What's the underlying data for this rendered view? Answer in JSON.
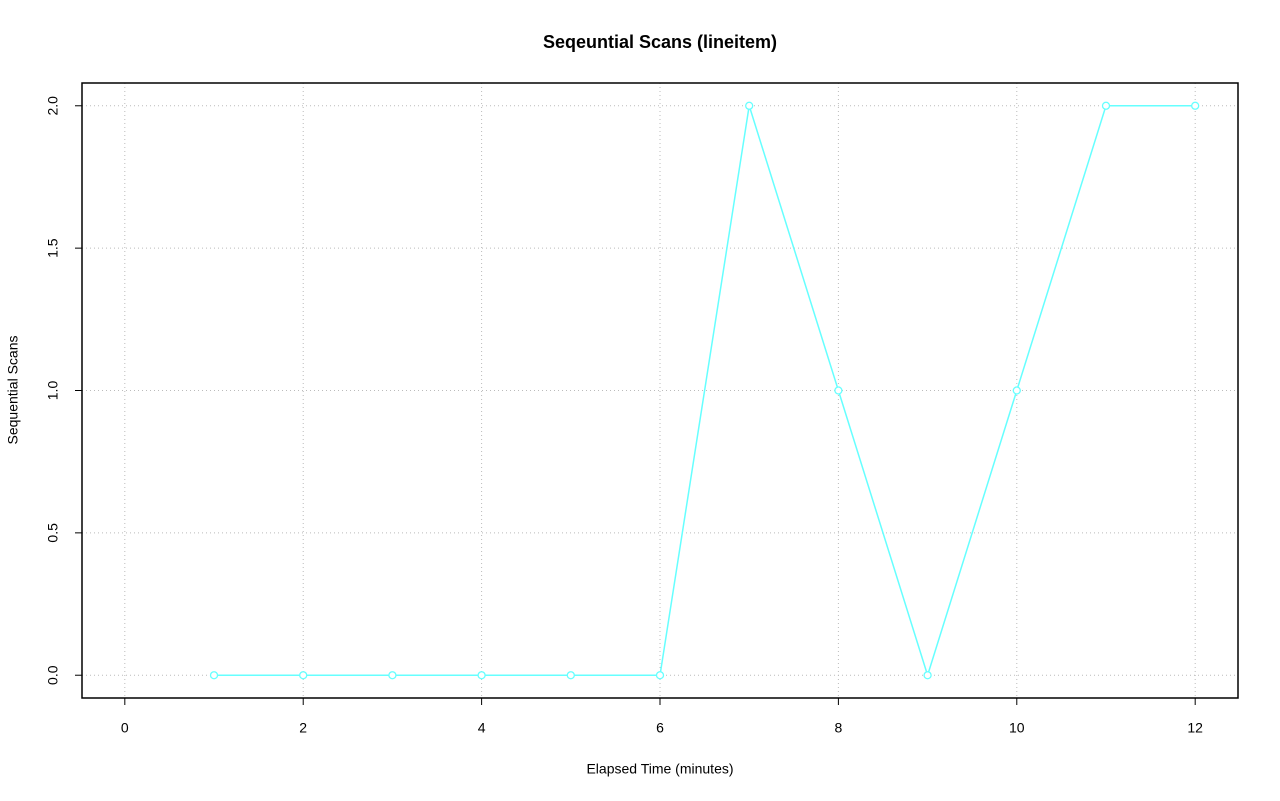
{
  "chart_data": {
    "type": "line",
    "title": "Seqeuntial Scans (lineitem)",
    "x_label": "Elapsed Time (minutes)",
    "y_label": "Sequential Scans",
    "x": [
      1,
      2,
      3,
      4,
      5,
      6,
      7,
      8,
      9,
      10,
      11,
      12
    ],
    "series": [
      {
        "color": "#66ffff",
        "values": [
          0,
          0,
          0,
          0,
          0,
          0,
          2,
          1,
          0,
          1,
          2,
          2
        ]
      }
    ],
    "xlim": [
      -0.48,
      12.48
    ],
    "ylim": [
      -0.08,
      2.08
    ],
    "xticks": [
      0,
      2,
      4,
      6,
      8,
      10,
      12
    ],
    "yticks": [
      {
        "value": 0,
        "label": "0.0"
      },
      {
        "value": 0.5,
        "label": "0.5"
      },
      {
        "value": 1,
        "label": "1.0"
      },
      {
        "value": 1.5,
        "label": "1.5"
      },
      {
        "value": 2,
        "label": "2.0"
      }
    ],
    "grid": true
  }
}
